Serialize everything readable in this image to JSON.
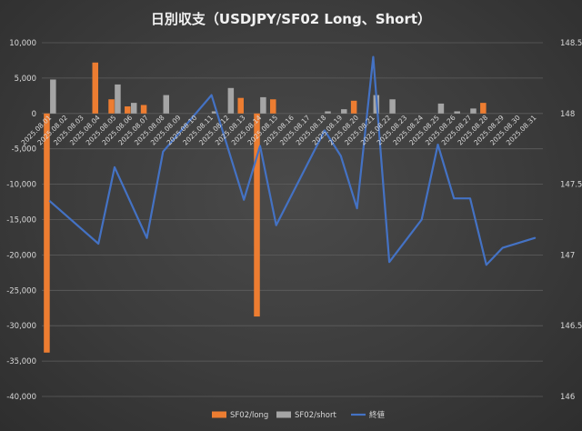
{
  "chart_data": {
    "type": "bar",
    "title": "日別収支（USDJPY/SF02 Long、Short）",
    "categories": [
      "2025.08.01",
      "2025.08.02",
      "2025.08.03",
      "2025.08.04",
      "2025.08.05",
      "2025.08.06",
      "2025.08.07",
      "2025.08.08",
      "2025.08.09",
      "2025.08.10",
      "2025.08.11",
      "2025.08.12",
      "2025.08.13",
      "2025.08.14",
      "2025.08.15",
      "2025.08.16",
      "2025.08.17",
      "2025.08.18",
      "2025.08.19",
      "2025.08.20",
      "2025.08.21",
      "2025.08.22",
      "2025.08.23",
      "2025.08.24",
      "2025.08.25",
      "2025.08.26",
      "2025.08.27",
      "2025.08.28",
      "2025.08.29",
      "2025.08.30",
      "2025.08.31"
    ],
    "series": [
      {
        "name": "SF02/long",
        "color": "#ed7d31",
        "axis": "left",
        "values": [
          -33800,
          0,
          0,
          7200,
          2000,
          1000,
          1200,
          0,
          0,
          0,
          0,
          0,
          2200,
          -28700,
          2000,
          0,
          0,
          0,
          0,
          1800,
          0,
          0,
          0,
          0,
          0,
          0,
          0,
          1500,
          0,
          0,
          0
        ]
      },
      {
        "name": "SF02/short",
        "color": "#a5a5a5",
        "axis": "left",
        "values": [
          4800,
          0,
          0,
          0,
          4100,
          1500,
          0,
          2600,
          0,
          0,
          300,
          3600,
          0,
          2300,
          0,
          0,
          0,
          300,
          600,
          0,
          2600,
          2000,
          0,
          0,
          1400,
          300,
          700,
          0,
          0,
          0,
          0
        ]
      },
      {
        "name": "終値",
        "color": "#4472c4",
        "axis": "right",
        "type": "line",
        "values": [
          147.38,
          null,
          null,
          147.08,
          147.62,
          null,
          147.12,
          147.73,
          null,
          null,
          148.13,
          null,
          147.39,
          147.77,
          147.21,
          null,
          null,
          147.88,
          147.7,
          147.33,
          148.4,
          146.95,
          null,
          147.25,
          147.78,
          147.4,
          147.4,
          146.93,
          147.05,
          null,
          147.12
        ]
      }
    ],
    "y_left": {
      "min": -40000,
      "max": 10000,
      "step": 5000,
      "ticks": [
        "-40,000",
        "-35,000",
        "-30,000",
        "-25,000",
        "-20,000",
        "-15,000",
        "-10,000",
        "-5,000",
        "0",
        "5,000",
        "10,000"
      ]
    },
    "y_right": {
      "min": 146,
      "max": 148.5,
      "step": 0.5,
      "ticks": [
        "146",
        "146.5",
        "147",
        "147.5",
        "148",
        "148.5"
      ]
    },
    "grid": true,
    "legend_position": "bottom"
  }
}
